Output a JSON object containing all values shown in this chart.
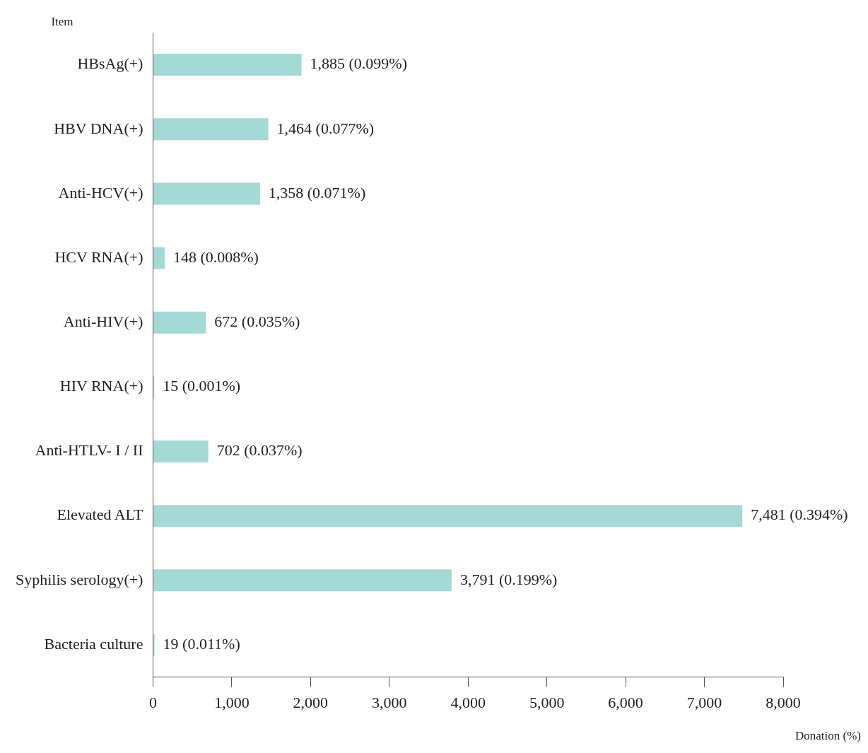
{
  "chart_data": {
    "type": "bar",
    "orientation": "horizontal",
    "xlabel": "Donation (%)",
    "ylabel": "Item",
    "categories": [
      "HBsAg(+)",
      "HBV DNA(+)",
      "Anti-HCV(+)",
      "HCV RNA(+)",
      "Anti-HIV(+)",
      "HIV RNA(+)",
      "Anti-HTLV- I / II",
      "Elevated ALT",
      "Syphilis serology(+)",
      "Bacteria culture"
    ],
    "values": [
      1885,
      1464,
      1358,
      148,
      672,
      15,
      702,
      7481,
      3791,
      19
    ],
    "value_labels": [
      "1,885 (0.099%)",
      "1,464 (0.077%)",
      "1,358 (0.071%)",
      "148 (0.008%)",
      "672 (0.035%)",
      "15 (0.001%)",
      "702 (0.037%)",
      "7,481 (0.394%)",
      "3,791 (0.199%)",
      "19 (0.011%)"
    ],
    "color": "#a3dad6",
    "xlim": [
      0,
      8000
    ],
    "xticks": [
      0,
      {
        "value": 1000,
        "label": "1,000"
      },
      {
        "value": 2000,
        "label": "2,000"
      },
      {
        "value": 3000,
        "label": "3,000"
      },
      {
        "value": 4000,
        "label": "4,000"
      },
      {
        "value": 5000,
        "label": "5,000"
      },
      {
        "value": 6000,
        "label": "6,000"
      },
      {
        "value": 7000,
        "label": "7,000"
      },
      {
        "value": 8000,
        "label": "8,000"
      }
    ],
    "grid": false,
    "legend": false
  }
}
